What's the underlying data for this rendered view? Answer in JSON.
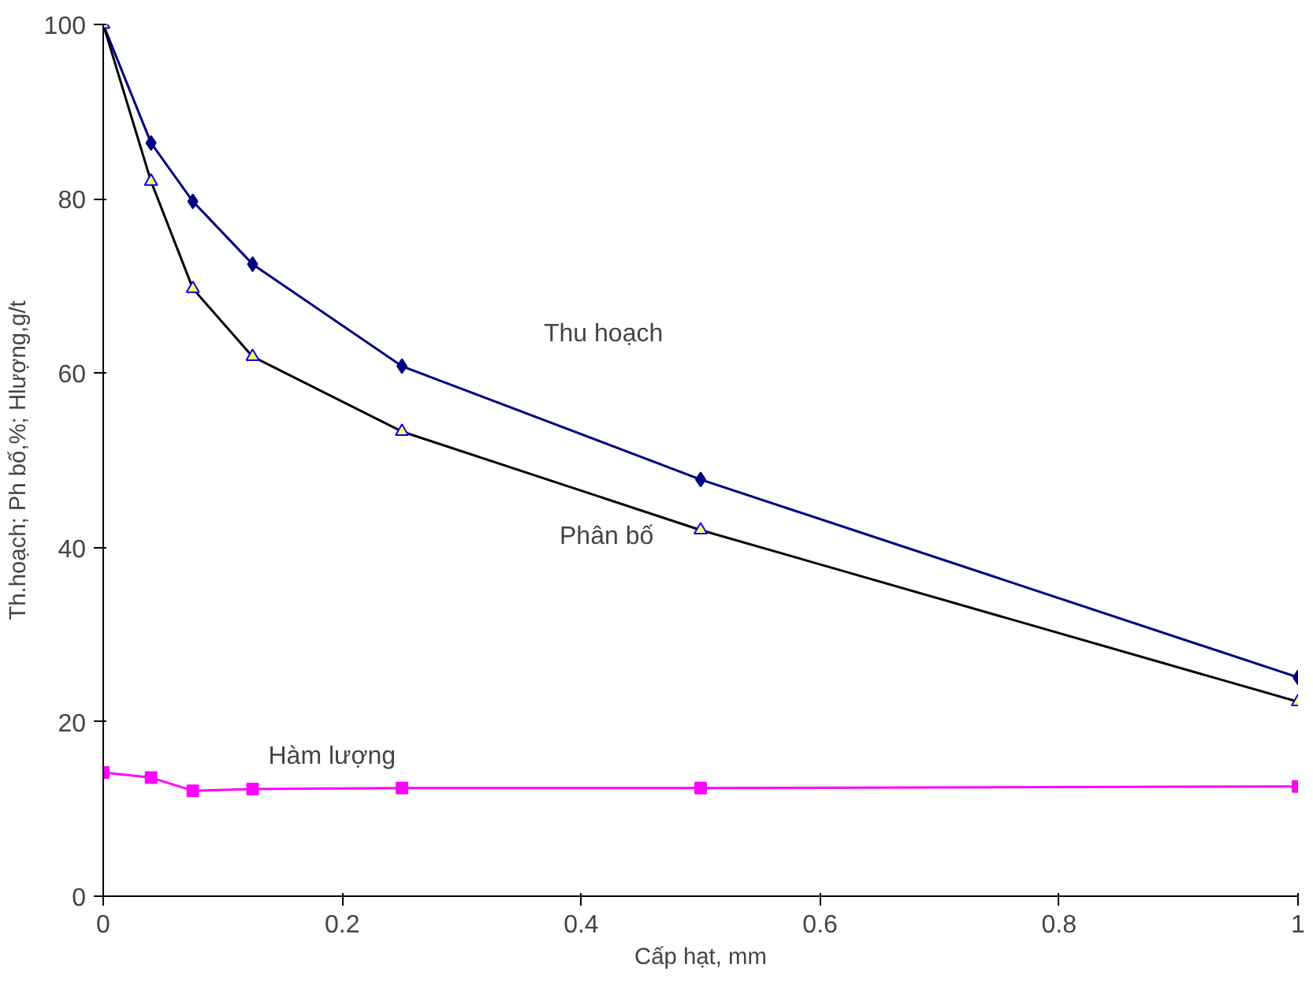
{
  "chart_data": {
    "type": "line",
    "xlabel": "Cấp hạt, mm",
    "ylabel": "Th.hoạch; Ph bố,%; Hlượng,g/t",
    "x": [
      0,
      0.04,
      0.075,
      0.125,
      0.25,
      0.5,
      1
    ],
    "series": [
      {
        "name": "Thu hoạch",
        "color": "#000080",
        "marker": "diamond",
        "values": [
          100,
          86.4,
          79.7,
          72.5,
          60.8,
          47.8,
          25.1
        ]
      },
      {
        "name": "Phân bố",
        "color": "#000000",
        "marker": "triangle",
        "values": [
          100,
          82,
          69.7,
          61.9,
          53.3,
          42,
          22.3
        ]
      },
      {
        "name": "Hàm lượng",
        "color": "#ff00ff",
        "marker": "square",
        "values": [
          14.2,
          13.6,
          12.1,
          12.3,
          12.4,
          12.4,
          12.6
        ]
      }
    ],
    "xlim": [
      0,
      1
    ],
    "xticks": [
      0,
      0.2,
      0.4,
      0.6,
      0.8,
      1
    ],
    "ylim": [
      0,
      100
    ],
    "yticks": [
      0,
      20,
      40,
      60,
      80,
      100
    ],
    "grid": false
  }
}
